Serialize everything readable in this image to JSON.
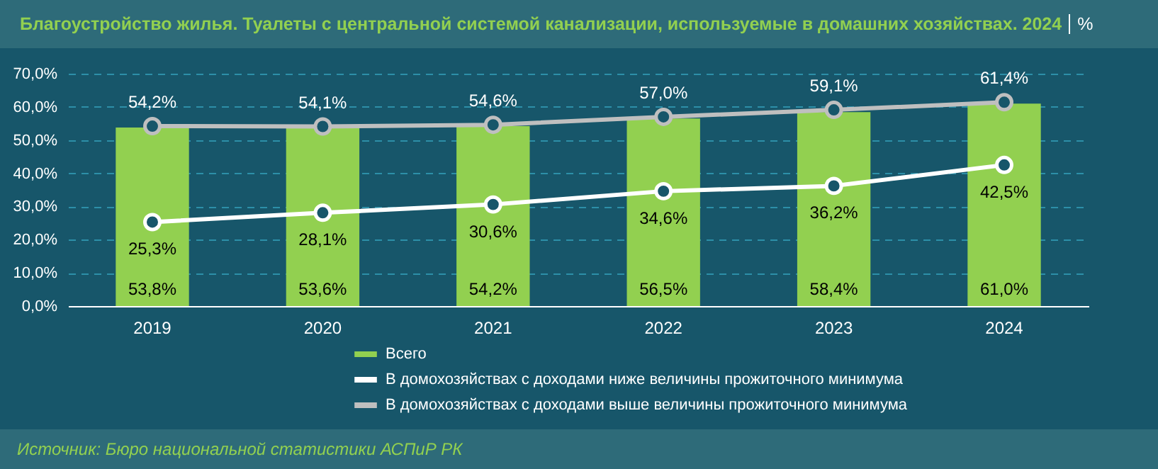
{
  "chart_data": {
    "type": "bar",
    "title": "Благоустройство жилья. Туалеты с центральной системой канализации, используемые в домашних хозяйствах. 2024",
    "ylabel": "%",
    "categories": [
      "2019",
      "2020",
      "2021",
      "2022",
      "2023",
      "2024"
    ],
    "series": [
      {
        "name": "Всего",
        "color": "#92d050",
        "values": [
          53.8,
          53.6,
          54.2,
          56.5,
          58.4,
          61.0
        ],
        "value_labels": [
          "53,8%",
          "53,6%",
          "54,2%",
          "56,5%",
          "58,4%",
          "61,0%"
        ]
      },
      {
        "name": "В домохозяйствах с доходами ниже величины прожиточного минимума",
        "type": "line",
        "color": "#ffffff",
        "values": [
          25.3,
          28.1,
          30.6,
          34.6,
          36.2,
          42.5
        ],
        "value_labels": [
          "25,3%",
          "28,1%",
          "30,6%",
          "34,6%",
          "36,2%",
          "42,5%"
        ]
      },
      {
        "name": "В домохозяйствах с доходами выше величины прожиточного минимума",
        "type": "line",
        "color": "#bfbfbf",
        "values": [
          54.2,
          54.1,
          54.6,
          57.0,
          59.1,
          61.4
        ],
        "value_labels": [
          "54,2%",
          "54,1%",
          "54,6%",
          "57,0%",
          "59,1%",
          "61,4%"
        ]
      }
    ],
    "ylim": [
      0,
      70
    ],
    "yticks": [
      {
        "value": 0,
        "label": "0,0%"
      },
      {
        "value": 10,
        "label": "10,0%"
      },
      {
        "value": 20,
        "label": "20,0%"
      },
      {
        "value": 30,
        "label": "30,0%"
      },
      {
        "value": 40,
        "label": "40,0%"
      },
      {
        "value": 50,
        "label": "50,0%"
      },
      {
        "value": 60,
        "label": "60,0%"
      },
      {
        "value": 70,
        "label": "70,0%"
      }
    ],
    "grid": "y",
    "legend": "bottom",
    "marker": "circle",
    "line_style": "solid",
    "annotations": [
      "Источник: Бюро национальной статистики АСПиР РК"
    ]
  }
}
